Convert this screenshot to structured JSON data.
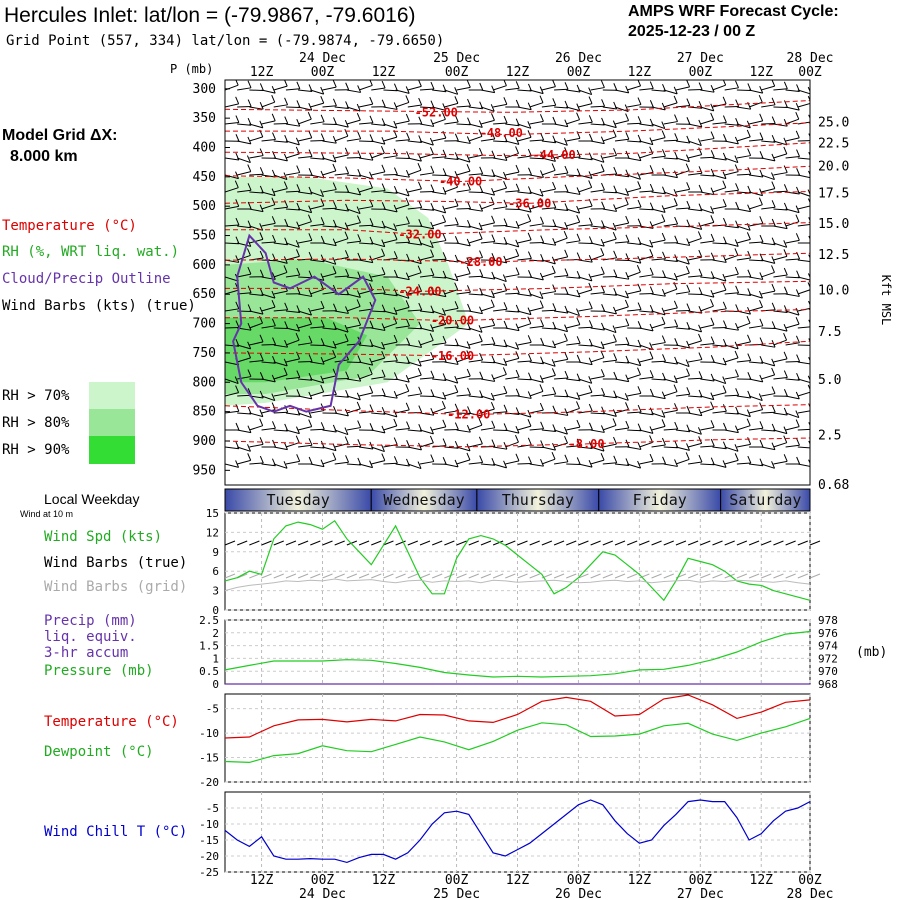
{
  "header": {
    "location_title": "Hercules Inlet:  lat/lon = (-79.9867, -79.6016)",
    "grid_point": "Grid Point (557, 334) lat/lon = (-79.9874, -79.6650)",
    "forecast_label": "AMPS WRF Forecast Cycle:",
    "forecast_cycle": "2025-12-23 / 00  Z"
  },
  "sidebar": {
    "model_grid_label": "Model Grid ΔX:",
    "model_grid_value": "8.000 km",
    "temperature_legend": "Temperature (°C)",
    "rh_legend": "RH (%, WRT liq. wat.)",
    "cloud_legend": "Cloud/Precip Outline",
    "wind_legend": "Wind Barbs (kts) (true)",
    "rh_keys": [
      {
        "label": "RH > 70%",
        "color": "#ccf5cc"
      },
      {
        "label": "RH > 80%",
        "color": "#99e699"
      },
      {
        "label": "RH > 90%",
        "color": "#33dd33"
      }
    ],
    "local_weekday": "Local Weekday",
    "wind_at": "Wind at 10 m",
    "wind_spd_legend": "Wind Spd (kts)",
    "wind_barbs_true": "Wind Barbs (true)",
    "wind_barbs_grid": "Wind Barbs (grid)",
    "precip_legend": "Precip (mm)",
    "precip_liq": "liq. equiv.",
    "precip_accum": "3-hr accum",
    "pressure_legend": "Pressure (mb)",
    "temp_legend2": "Temperature (°C)",
    "dewpoint_legend": "Dewpoint (°C)",
    "windchill_legend": "Wind Chill T (°C)"
  },
  "colors": {
    "temp": "#dd0000",
    "green": "#22cc22",
    "purple": "#6633aa",
    "blue": "#0000cc",
    "grid_gray": "#aaaaaa"
  },
  "chart_data": {
    "time_axis": {
      "x_hours": [
        0,
        144
      ],
      "tick_labels": [
        "12Z",
        "00Z",
        "12Z",
        "00Z",
        "12Z",
        "00Z",
        "12Z",
        "00Z",
        "12Z",
        "00Z"
      ],
      "tick_hours": [
        9,
        24,
        39,
        57,
        72,
        87,
        102,
        117,
        132,
        144
      ],
      "date_labels": [
        "24 Dec",
        "25 Dec",
        "26 Dec",
        "27 Dec",
        "28 Dec"
      ],
      "date_hours": [
        24,
        57,
        87,
        117,
        144
      ],
      "days": [
        "Tuesday",
        "Wednesday",
        "Thursday",
        "Friday",
        "Saturday"
      ],
      "day_bounds": [
        [
          0,
          36
        ],
        [
          36,
          62
        ],
        [
          62,
          92
        ],
        [
          92,
          122
        ],
        [
          122,
          144
        ]
      ]
    },
    "cross_section": {
      "type": "contour",
      "ylabel": "P (mb)",
      "ylim": [
        975,
        285
      ],
      "pressure_ticks": [
        300,
        350,
        400,
        450,
        500,
        550,
        600,
        650,
        700,
        750,
        800,
        850,
        900,
        950
      ],
      "kft_label": "Kft MSL",
      "kft_ticks": [
        {
          "label": "25.0",
          "p": 357
        },
        {
          "label": "22.5",
          "p": 393
        },
        {
          "label": "20.0",
          "p": 432
        },
        {
          "label": "17.5",
          "p": 478
        },
        {
          "label": "15.0",
          "p": 530
        },
        {
          "label": "12.5",
          "p": 583
        },
        {
          "label": "10.0",
          "p": 644
        },
        {
          "label": "7.5",
          "p": 714
        },
        {
          "label": "5.0",
          "p": 796
        },
        {
          "label": "2.5",
          "p": 891
        },
        {
          "label": "0.68",
          "p": 975
        }
      ],
      "temperature_contours": [
        {
          "label": "-52.00",
          "label_h": 52,
          "label_p": 340,
          "pts": [
            [
              0,
              335
            ],
            [
              40,
              338
            ],
            [
              70,
              340
            ],
            [
              100,
              336
            ],
            [
              144,
              320
            ]
          ]
        },
        {
          "label": "-48.00",
          "label_h": 68,
          "label_p": 375,
          "pts": [
            [
              0,
              372
            ],
            [
              40,
              372
            ],
            [
              70,
              378
            ],
            [
              100,
              372
            ],
            [
              144,
              358
            ]
          ]
        },
        {
          "label": "-44.00",
          "label_h": 81,
          "label_p": 413,
          "pts": [
            [
              0,
              408
            ],
            [
              40,
              410
            ],
            [
              70,
              414
            ],
            [
              100,
              410
            ],
            [
              144,
              392
            ]
          ]
        },
        {
          "label": "-40.00",
          "label_h": 58,
          "label_p": 458,
          "pts": [
            [
              0,
              448
            ],
            [
              30,
              452
            ],
            [
              58,
              458
            ],
            [
              90,
              448
            ],
            [
              120,
              440
            ],
            [
              144,
              432
            ]
          ]
        },
        {
          "label": "-36.00",
          "label_h": 75,
          "label_p": 495,
          "pts": [
            [
              0,
              495
            ],
            [
              30,
              490
            ],
            [
              55,
              492
            ],
            [
              75,
              495
            ],
            [
              110,
              482
            ],
            [
              144,
              475
            ]
          ]
        },
        {
          "label": "-32.00",
          "label_h": 48,
          "label_p": 548,
          "pts": [
            [
              0,
              540
            ],
            [
              30,
              540
            ],
            [
              48,
              548
            ],
            [
              80,
              540
            ],
            [
              110,
              535
            ],
            [
              144,
              528
            ]
          ]
        },
        {
          "label": "-28.00",
          "label_h": 63,
          "label_p": 595,
          "pts": [
            [
              0,
              592
            ],
            [
              30,
              590
            ],
            [
              63,
              595
            ],
            [
              95,
              590
            ],
            [
              120,
              585
            ],
            [
              144,
              580
            ]
          ]
        },
        {
          "label": "-24.00",
          "label_h": 48,
          "label_p": 645,
          "pts": [
            [
              0,
              640
            ],
            [
              30,
              640
            ],
            [
              48,
              645
            ],
            [
              80,
              640
            ],
            [
              110,
              632
            ],
            [
              144,
              628
            ]
          ]
        },
        {
          "label": "-20.00",
          "label_h": 56,
          "label_p": 695,
          "pts": [
            [
              0,
              690
            ],
            [
              30,
              690
            ],
            [
              56,
              695
            ],
            [
              90,
              688
            ],
            [
              120,
              680
            ],
            [
              144,
              676
            ]
          ]
        },
        {
          "label": "-16.00",
          "label_h": 56,
          "label_p": 755,
          "pts": [
            [
              0,
              750
            ],
            [
              30,
              752
            ],
            [
              56,
              755
            ],
            [
              90,
              748
            ],
            [
              120,
              740
            ],
            [
              144,
              730
            ]
          ]
        },
        {
          "label": "-12.00",
          "label_h": 60,
          "label_p": 855,
          "pts": [
            [
              0,
              840
            ],
            [
              30,
              848
            ],
            [
              60,
              855
            ],
            [
              90,
              850
            ],
            [
              120,
              842
            ],
            [
              144,
              838
            ]
          ]
        },
        {
          "label": "-8.00",
          "label_h": 89,
          "label_p": 905,
          "pts": [
            [
              0,
              900
            ],
            [
              30,
              906
            ],
            [
              60,
              910
            ],
            [
              89,
              905
            ],
            [
              120,
              898
            ],
            [
              144,
              895
            ]
          ]
        }
      ],
      "rh_regions": [
        {
          "level": 70,
          "pts": [
            [
              0,
              450
            ],
            [
              20,
              450
            ],
            [
              40,
              470
            ],
            [
              50,
              520
            ],
            [
              55,
              600
            ],
            [
              60,
              700
            ],
            [
              40,
              800
            ],
            [
              10,
              835
            ],
            [
              0,
              840
            ]
          ]
        },
        {
          "level": 80,
          "pts": [
            [
              0,
              600
            ],
            [
              20,
              590
            ],
            [
              40,
              620
            ],
            [
              48,
              700
            ],
            [
              35,
              790
            ],
            [
              10,
              820
            ],
            [
              0,
              820
            ]
          ]
        },
        {
          "level": 90,
          "pts": [
            [
              0,
              690
            ],
            [
              25,
              690
            ],
            [
              35,
              720
            ],
            [
              30,
              780
            ],
            [
              10,
              800
            ],
            [
              0,
              800
            ]
          ]
        }
      ],
      "cloud_outline": [
        [
          4,
          700
        ],
        [
          3,
          620
        ],
        [
          6,
          550
        ],
        [
          10,
          580
        ],
        [
          12,
          630
        ],
        [
          16,
          640
        ],
        [
          22,
          620
        ],
        [
          28,
          650
        ],
        [
          34,
          620
        ],
        [
          37,
          660
        ],
        [
          33,
          730
        ],
        [
          28,
          770
        ],
        [
          26,
          840
        ],
        [
          20,
          850
        ],
        [
          16,
          840
        ],
        [
          12,
          850
        ],
        [
          8,
          840
        ],
        [
          4,
          800
        ],
        [
          2,
          730
        ],
        [
          4,
          700
        ]
      ]
    },
    "wind_speed": {
      "type": "line",
      "ylim": [
        0,
        15
      ],
      "yticks": [
        0,
        3,
        6,
        9,
        12,
        15
      ],
      "x": [
        0,
        3,
        6,
        9,
        12,
        15,
        18,
        21,
        24,
        27,
        30,
        33,
        36,
        39,
        42,
        45,
        48,
        51,
        54,
        57,
        60,
        63,
        66,
        69,
        72,
        75,
        78,
        81,
        84,
        87,
        90,
        93,
        96,
        99,
        102,
        105,
        108,
        111,
        114,
        117,
        120,
        123,
        126,
        129,
        132,
        135,
        138,
        141,
        144
      ],
      "speed": [
        4.5,
        5,
        6,
        5.5,
        11,
        13,
        13.6,
        13.2,
        12.5,
        13.8,
        11,
        9,
        7,
        10,
        13,
        9,
        5,
        2.5,
        2.5,
        8,
        11,
        11.5,
        11,
        10,
        8.5,
        7,
        5.5,
        2.5,
        3.5,
        5,
        7,
        9,
        8.5,
        7,
        5.5,
        3.5,
        1.5,
        4.5,
        8,
        7.5,
        7,
        6,
        4.5,
        4,
        3.8,
        3,
        2.5,
        2,
        1.5
      ],
      "grid_speed": [
        3,
        3.5,
        3.8,
        4,
        4.2,
        4.5,
        4.4,
        4.6,
        4.5,
        4.8,
        4.5,
        4.6,
        4.7,
        4.4,
        4.2,
        4.5,
        4.6,
        4.3,
        4.5,
        4.4,
        4.5,
        4.2,
        4.6,
        4.5,
        4.3,
        4.4,
        4.5,
        4.6,
        4.4,
        4.2,
        4.3,
        4.5,
        4.6,
        4.4,
        4.5,
        4.2,
        4.4,
        4.5,
        4.6,
        4.3,
        4.5,
        4.4,
        4.6,
        4.5,
        4.4,
        4.3,
        4.5,
        4.2,
        4.0
      ]
    },
    "precip_pressure": {
      "type": "line",
      "precip_ylim": [
        0,
        2.5
      ],
      "precip_ticks": [
        0.0,
        0.5,
        1.0,
        1.5,
        2.0,
        2.5
      ],
      "pressure_ylim": [
        968,
        978
      ],
      "pressure_ticks": [
        968,
        970,
        972,
        974,
        976,
        978
      ],
      "pressure_unit": "(mb)",
      "x": [
        0,
        6,
        12,
        18,
        24,
        30,
        36,
        42,
        48,
        54,
        60,
        66,
        72,
        78,
        84,
        90,
        96,
        102,
        108,
        114,
        120,
        126,
        132,
        138,
        144
      ],
      "precip": [
        0,
        0,
        0,
        0,
        0,
        0,
        0,
        0,
        0,
        0,
        0,
        0,
        0,
        0,
        0,
        0,
        0,
        0,
        0,
        0,
        0,
        0,
        0,
        0,
        0
      ],
      "pressure": [
        970.2,
        970.9,
        971.6,
        971.6,
        971.6,
        971.8,
        971.7,
        971.2,
        970.6,
        969.8,
        969.4,
        969.1,
        969.2,
        969.1,
        969.2,
        969.3,
        969.6,
        970.2,
        970.3,
        970.9,
        971.8,
        973,
        974.6,
        975.8,
        976.2
      ]
    },
    "temperature": {
      "type": "line",
      "ylim": [
        -20,
        0
      ],
      "yticks": [
        -20,
        -15,
        -10,
        -5
      ],
      "x": [
        0,
        6,
        12,
        18,
        24,
        30,
        36,
        42,
        48,
        54,
        60,
        66,
        72,
        78,
        84,
        90,
        96,
        102,
        108,
        114,
        120,
        126,
        132,
        138,
        144
      ],
      "temp": [
        -11,
        -10.8,
        -8.5,
        -7.3,
        -7.2,
        -7.7,
        -7.2,
        -7.5,
        -6.2,
        -6.3,
        -7.5,
        -7.8,
        -6.2,
        -3.5,
        -2.7,
        -3.5,
        -6.5,
        -6.2,
        -3,
        -2.2,
        -4.2,
        -7,
        -5.7,
        -3.7,
        -3.2
      ],
      "dewpoint": [
        -15.8,
        -16,
        -14.6,
        -14.2,
        -12.6,
        -13.6,
        -13.8,
        -12.3,
        -10.8,
        -11.8,
        -13.4,
        -11.7,
        -9.4,
        -7.9,
        -8.3,
        -10.7,
        -10.6,
        -10.2,
        -8.5,
        -8,
        -10.2,
        -11.5,
        -10,
        -8.7,
        -7
      ]
    },
    "wind_chill": {
      "type": "line",
      "ylim": [
        -25,
        0
      ],
      "yticks": [
        -25,
        -20,
        -15,
        -10,
        -5
      ],
      "x": [
        0,
        3,
        6,
        9,
        12,
        15,
        18,
        21,
        24,
        27,
        30,
        33,
        36,
        39,
        42,
        45,
        48,
        51,
        54,
        57,
        60,
        63,
        66,
        69,
        72,
        75,
        78,
        81,
        84,
        87,
        90,
        93,
        96,
        99,
        102,
        105,
        108,
        111,
        114,
        117,
        120,
        123,
        126,
        129,
        132,
        135,
        138,
        141,
        144
      ],
      "values": [
        -12,
        -15,
        -17,
        -14,
        -20,
        -21,
        -21,
        -20.8,
        -21,
        -21,
        -22,
        -20.5,
        -19.5,
        -19.5,
        -21,
        -19,
        -15,
        -10,
        -6.5,
        -6,
        -7,
        -13,
        -19,
        -20,
        -18,
        -16,
        -13,
        -10,
        -7,
        -4,
        -2.5,
        -4,
        -9,
        -13,
        -16,
        -15,
        -10.5,
        -7,
        -3,
        -2.5,
        -3,
        -3,
        -8,
        -15,
        -13,
        -9,
        -6,
        -5,
        -3
      ]
    }
  }
}
